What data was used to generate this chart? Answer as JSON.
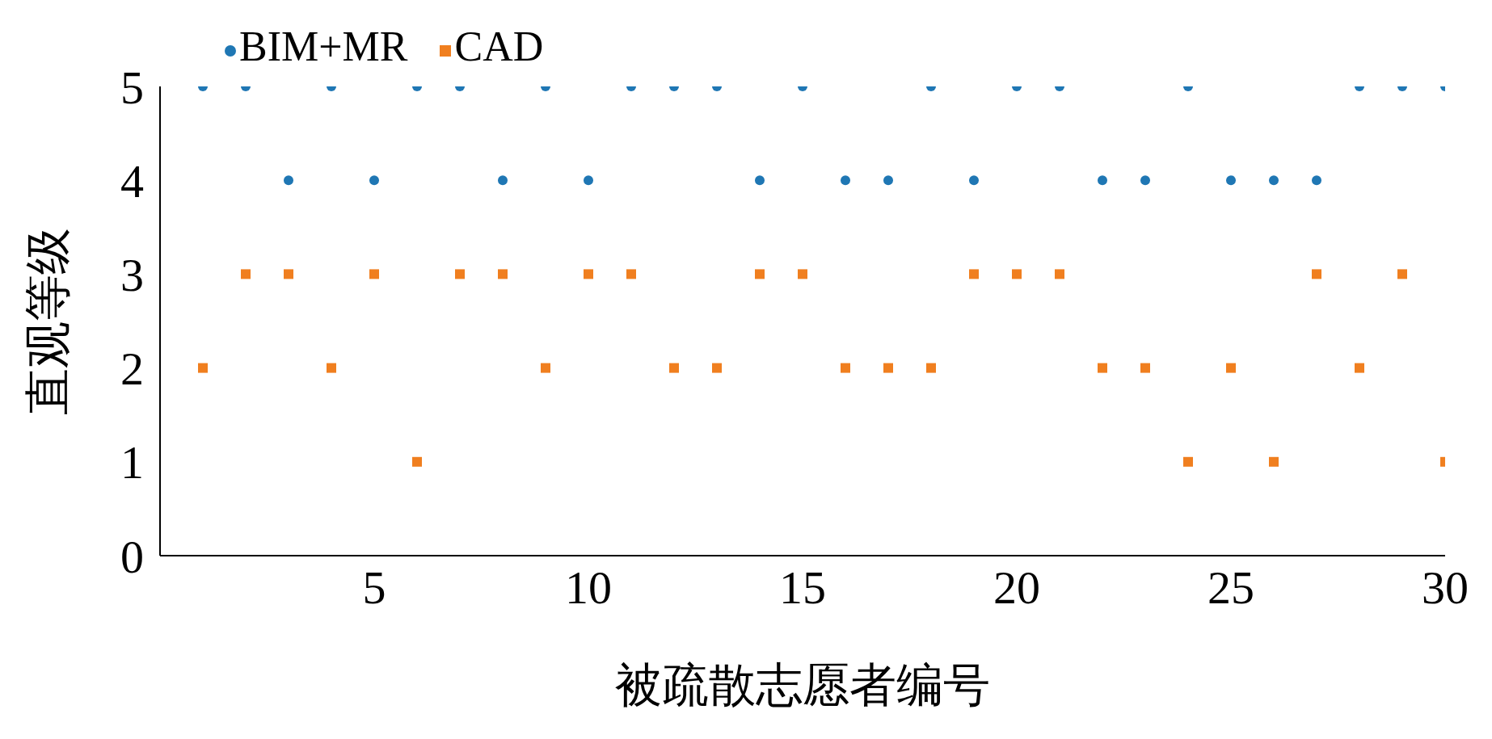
{
  "chart_data": {
    "type": "scatter",
    "xlabel": "被疏散志愿者编号",
    "ylabel": "直观等级",
    "x": [
      1,
      2,
      3,
      4,
      5,
      6,
      7,
      8,
      9,
      10,
      11,
      12,
      13,
      14,
      15,
      16,
      17,
      18,
      19,
      20,
      21,
      22,
      23,
      24,
      25,
      26,
      27,
      28,
      29,
      30
    ],
    "series": [
      {
        "name": "BIM+MR",
        "color": "#1f77b4",
        "marker": "circle",
        "values": [
          5,
          5,
          4,
          5,
          4,
          5,
          5,
          4,
          5,
          4,
          5,
          5,
          5,
          4,
          5,
          4,
          4,
          5,
          4,
          5,
          5,
          4,
          4,
          5,
          4,
          4,
          4,
          5,
          5,
          5
        ]
      },
      {
        "name": "CAD",
        "color": "#f07f1f",
        "marker": "square",
        "values": [
          2,
          3,
          3,
          2,
          3,
          1,
          3,
          3,
          2,
          3,
          3,
          2,
          2,
          3,
          3,
          2,
          2,
          2,
          3,
          3,
          3,
          2,
          2,
          1,
          2,
          1,
          3,
          2,
          3,
          1
        ]
      }
    ],
    "xlim": [
      0,
      30
    ],
    "xticks": [
      5,
      10,
      15,
      20,
      25,
      30
    ],
    "ylim": [
      0,
      5
    ],
    "yticks": [
      0,
      1,
      2,
      3,
      4,
      5
    ],
    "grid": false,
    "legend": "top left"
  }
}
